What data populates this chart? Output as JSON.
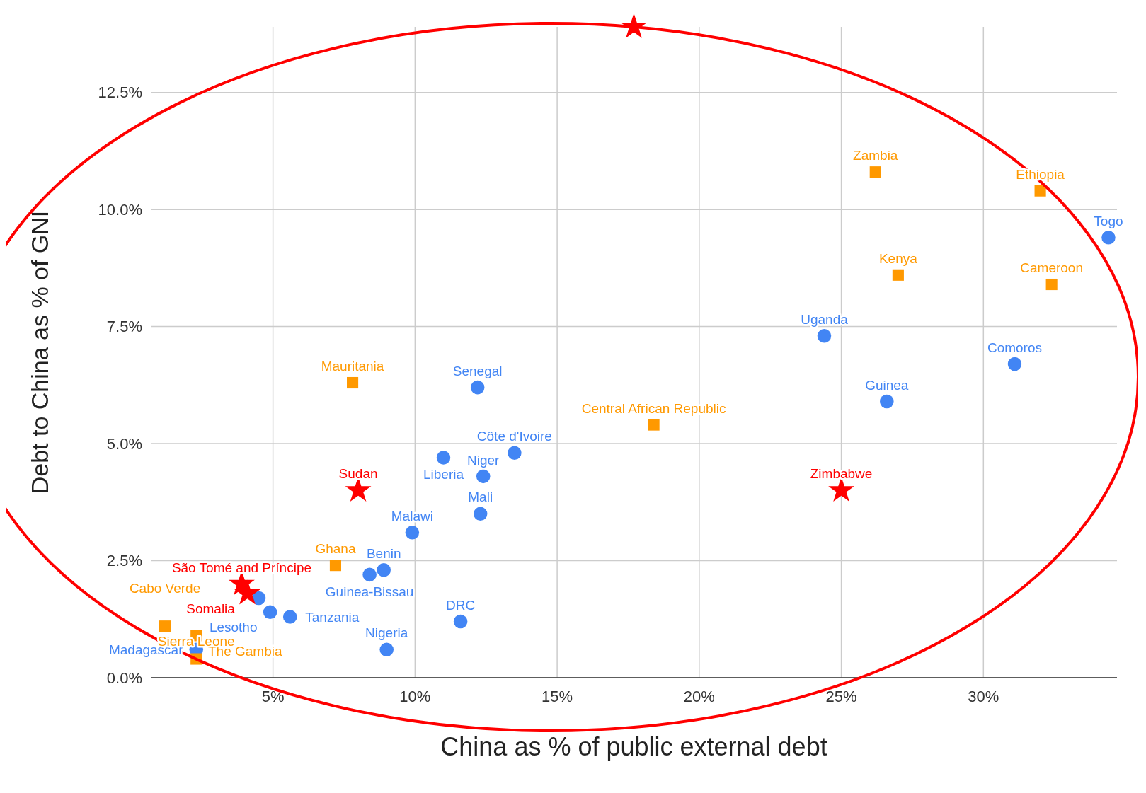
{
  "chart_data": {
    "type": "scatter",
    "xlabel": "China as % of public external debt",
    "ylabel": "Debt to China as % of GNI",
    "xlim": [
      0.7,
      34.7
    ],
    "ylim": [
      0,
      13.9
    ],
    "xticks": [
      {
        "value": 5,
        "label": "5%"
      },
      {
        "value": 10,
        "label": "10%"
      },
      {
        "value": 15,
        "label": "15%"
      },
      {
        "value": 20,
        "label": "20%"
      },
      {
        "value": 25,
        "label": "25%"
      },
      {
        "value": 30,
        "label": "30%"
      }
    ],
    "yticks": [
      {
        "value": 0,
        "label": "0.0%"
      },
      {
        "value": 2.5,
        "label": "2.5%"
      },
      {
        "value": 5,
        "label": "5.0%"
      },
      {
        "value": 7.5,
        "label": "7.5%"
      },
      {
        "value": 10,
        "label": "10.0%"
      },
      {
        "value": 12.5,
        "label": "12.5%"
      }
    ],
    "grid": true,
    "series": [
      {
        "color": "#4285f4",
        "marker": "circle",
        "x": [
          34.4,
          31.1,
          26.6,
          24.4,
          12.2,
          11.0,
          13.5,
          12.4,
          12.3,
          9.9,
          8.4,
          8.9,
          11.6,
          9.0,
          5.6,
          4.9,
          4.5,
          2.3
        ],
        "values": [
          9.4,
          6.7,
          5.9,
          7.3,
          6.2,
          4.7,
          4.8,
          4.3,
          3.5,
          3.1,
          2.2,
          2.3,
          1.2,
          0.6,
          1.3,
          1.4,
          1.7,
          0.6
        ],
        "value_labels": [
          "Togo",
          "Comoros",
          "Guinea",
          "Uganda",
          "Senegal",
          "Liberia",
          "Côte d'Ivoire",
          "Niger",
          "Mali",
          "Malawi",
          "Guinea-Bissau",
          "Benin",
          "DRC",
          "Nigeria",
          "Tanzania",
          "Lesotho",
          null,
          "Madagascar"
        ]
      },
      {
        "color": "#ff9900",
        "marker": "square",
        "x": [
          26.2,
          32.0,
          27.0,
          32.4,
          7.8,
          18.4,
          7.2,
          1.2,
          2.3,
          2.3
        ],
        "values": [
          10.8,
          10.4,
          8.6,
          8.4,
          6.3,
          5.4,
          2.4,
          1.1,
          0.9,
          0.4
        ],
        "value_labels": [
          "Zambia",
          "Ethiopia",
          "Kenya",
          "Cameroon",
          "Mauritania",
          "Central African Republic",
          "Ghana",
          "Cabo Verde",
          "The Gambia",
          "Sierra Leone"
        ]
      },
      {
        "color": "#ff0000",
        "marker": "star",
        "x": [
          8.0,
          25.0,
          4.1,
          3.9,
          17.7
        ],
        "values": [
          4.0,
          4.0,
          1.8,
          2.0,
          13.9
        ],
        "value_labels": [
          "Sudan",
          "Zimbabwe",
          "Somalia",
          "São Tomé and Príncipe",
          null
        ]
      }
    ]
  }
}
